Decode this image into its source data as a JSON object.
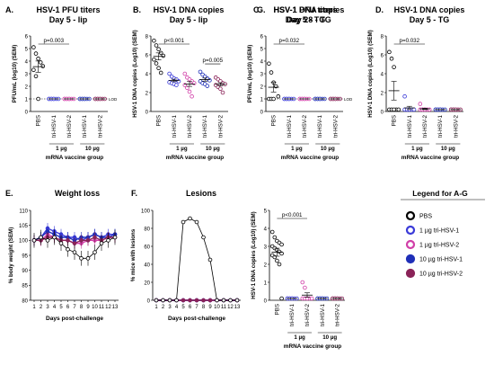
{
  "colors": {
    "pbs": "#000000",
    "low1": "#3a3ad8",
    "low2": "#d13fa8",
    "high1": "#1f2fb8",
    "high2": "#8a2358"
  },
  "legend": {
    "title": "Legend for A-G",
    "items": [
      {
        "label": "PBS",
        "color": "#000000"
      },
      {
        "label": "1 µg tri-HSV-1",
        "color": "#3a3ad8"
      },
      {
        "label": "1 µg tri-HSV-2",
        "color": "#d13fa8"
      },
      {
        "label": "10 µg tri-HSV-1",
        "color": "#1f2fb8"
      },
      {
        "label": "10 µg tri-HSV-2",
        "color": "#8a2358"
      }
    ]
  },
  "chart_data": [
    {
      "panel": "A.",
      "type": "scatter",
      "title": "HSV-1 PFU titers",
      "subtitle": "Day 5 - lip",
      "ylabel": "PFU/mL (log10) (SEM)",
      "xlabel": "mRNA vaccine group",
      "categories": [
        "PBS",
        "tri-HSV-1",
        "tri-HSV-2",
        "tri-HSV-1",
        "tri-HSV-2"
      ],
      "dose_labels": [
        "1 µg",
        "10 µg"
      ],
      "ylim": [
        0,
        6
      ],
      "yticks": [
        0,
        1,
        2,
        3,
        4,
        5,
        6
      ],
      "lod_label": "LOD",
      "stats": [
        {
          "text": "p=0.003",
          "from": 0,
          "to": 2
        }
      ],
      "groups": [
        [
          5.1,
          4.6,
          4.2,
          3.9,
          3.6,
          3.3,
          2.8,
          1.0
        ],
        [
          1,
          1,
          1,
          1,
          1,
          1,
          1,
          1
        ],
        [
          1,
          1,
          1,
          1,
          1,
          1,
          1,
          1
        ],
        [
          1,
          1,
          1,
          1,
          1,
          1,
          1,
          1
        ],
        [
          1,
          1,
          1,
          1,
          1,
          1,
          1,
          1
        ]
      ]
    },
    {
      "panel": "B.",
      "type": "scatter",
      "title": "HSV-1 DNA copies",
      "subtitle": "Day 5 - lip",
      "ylabel": "HSV-1 DNA copies (Log10) (SEM)",
      "xlabel": "mRNA vaccine group",
      "categories": [
        "PBS",
        "tri-HSV-1",
        "tri-HSV-2",
        "tri-HSV-1",
        "tri-HSV-2"
      ],
      "dose_labels": [
        "1 µg",
        "10 µg"
      ],
      "ylim": [
        0,
        8
      ],
      "yticks": [
        0,
        2,
        4,
        6,
        8
      ],
      "stats": [
        {
          "text": "p<0.001",
          "from": 0,
          "to": 2
        },
        {
          "text": "p=0.005",
          "from": 3,
          "to": 4
        }
      ],
      "groups": [
        [
          7.5,
          7.0,
          6.6,
          6.2,
          5.9,
          5.5,
          5.1,
          4.6,
          4.1
        ],
        [
          4.0,
          3.7,
          3.5,
          3.4,
          3.2,
          3.1,
          3.0,
          2.9,
          2.8
        ],
        [
          4.0,
          3.6,
          3.4,
          3.2,
          3.0,
          2.8,
          2.5,
          2.1,
          1.6
        ],
        [
          4.2,
          3.9,
          3.7,
          3.5,
          3.3,
          3.2,
          3.0,
          2.9,
          2.7
        ],
        [
          3.6,
          3.4,
          3.2,
          3.0,
          2.9,
          2.8,
          2.6,
          2.4,
          2.0
        ]
      ]
    },
    {
      "panel": "C.",
      "type": "scatter",
      "title": "HSV-1 PFU  titers",
      "subtitle": "Day 5 - TG",
      "ylabel": "PFU/mL (log10) (SEM)",
      "xlabel": "mRNA vaccine group",
      "categories": [
        "PBS",
        "tri-HSV-1",
        "tri-HSV-2",
        "tri-HSV-1",
        "tri-HSV-2"
      ],
      "dose_labels": [
        "1 µg",
        "10 µg"
      ],
      "ylim": [
        0,
        6
      ],
      "yticks": [
        0,
        1,
        2,
        3,
        4,
        5,
        6
      ],
      "lod_label": "LOD",
      "stats": [
        {
          "text": "p=0.032",
          "from": 0,
          "to": 2
        }
      ],
      "groups": [
        [
          3.8,
          3.1,
          2.3,
          2.0,
          1.2,
          1.0,
          1.0,
          1.0
        ],
        [
          1,
          1,
          1,
          1,
          1,
          1,
          1,
          1
        ],
        [
          1,
          1,
          1,
          1,
          1,
          1,
          1,
          1
        ],
        [
          1,
          1,
          1,
          1,
          1,
          1,
          1,
          1
        ],
        [
          1,
          1,
          1,
          1,
          1,
          1,
          1,
          1
        ]
      ]
    },
    {
      "panel": "D.",
      "type": "scatter",
      "title": "HSV-1 DNA copies",
      "subtitle": "Day 5 - TG",
      "ylabel": "HSV-1 DNA copies (Log10) (SEM)",
      "xlabel": "mRNA vaccine group",
      "categories": [
        "PBS",
        "tri-HSV-1",
        "tri-HSV-2",
        "tri-HSV-1",
        "tri-HSV-2"
      ],
      "dose_labels": [
        "1 µg",
        "10 µg"
      ],
      "ylim": [
        0,
        8
      ],
      "yticks": [
        0,
        2,
        4,
        6,
        8
      ],
      "stats": [
        {
          "text": "p=0.032",
          "from": 0,
          "to": 2
        }
      ],
      "groups": [
        [
          6.3,
          5.6,
          4.7,
          0.2,
          0.2,
          0.2,
          0.2,
          0.2
        ],
        [
          1.6,
          0.2,
          0.2,
          0.2,
          0.2,
          0.2,
          0.2,
          0.2
        ],
        [
          0.8,
          0.2,
          0.2,
          0.2,
          0.2,
          0.2,
          0.2,
          0.2
        ],
        [
          0.2,
          0.2,
          0.2,
          0.2,
          0.2,
          0.2,
          0.2,
          0.2
        ],
        [
          0.2,
          0.2,
          0.2,
          0.2,
          0.2,
          0.2,
          0.2,
          0.2
        ]
      ]
    },
    {
      "panel": "E.",
      "type": "line",
      "title": "Weight loss",
      "ylabel": "% body weight (SEM)",
      "xlabel": "Days post-challenge",
      "x": [
        1,
        2,
        3,
        4,
        5,
        6,
        7,
        8,
        9,
        10,
        11,
        12,
        13
      ],
      "ylim": [
        80,
        110
      ],
      "yticks": [
        80,
        85,
        90,
        95,
        100,
        105,
        110
      ],
      "series": [
        {
          "values": [
            100,
            101,
            100,
            101,
            99,
            97,
            96,
            94,
            94,
            96,
            99,
            100,
            101
          ]
        },
        {
          "values": [
            100,
            101,
            104,
            103,
            102,
            101,
            101,
            100,
            101,
            102,
            101,
            102,
            102
          ]
        },
        {
          "values": [
            100,
            100,
            102,
            101,
            100,
            100,
            99,
            99,
            100,
            100,
            100,
            101,
            101
          ]
        },
        {
          "values": [
            100,
            101,
            103,
            102,
            101,
            101,
            100,
            101,
            101,
            102,
            101,
            101,
            102
          ]
        },
        {
          "values": [
            100,
            100,
            101,
            101,
            100,
            100,
            99,
            100,
            100,
            101,
            100,
            101,
            101
          ]
        }
      ]
    },
    {
      "panel": "F.",
      "type": "line",
      "title": "Lesions",
      "ylabel": "% mice with lesions",
      "xlabel": "Days post-challenge",
      "x": [
        1,
        2,
        3,
        4,
        5,
        6,
        7,
        8,
        9,
        10,
        11,
        12,
        13
      ],
      "ylim": [
        0,
        100
      ],
      "yticks": [
        0,
        20,
        40,
        60,
        80,
        100
      ],
      "series": [
        {
          "values": [
            0,
            0,
            0,
            0,
            87,
            91,
            87,
            70,
            45,
            0,
            0,
            0,
            0
          ]
        },
        {
          "values": [
            0,
            0,
            0,
            0,
            0,
            0,
            0,
            0,
            0,
            0,
            0,
            0,
            0
          ]
        },
        {
          "values": [
            0,
            0,
            0,
            0,
            0,
            0,
            0,
            0,
            0,
            0,
            0,
            0,
            0
          ]
        },
        {
          "values": [
            0,
            0,
            0,
            0,
            0,
            0,
            0,
            0,
            0,
            0,
            0,
            0,
            0
          ]
        },
        {
          "values": [
            0,
            0,
            0,
            0,
            0,
            0,
            0,
            0,
            0,
            0,
            0,
            0,
            0
          ]
        }
      ]
    },
    {
      "panel": "G.",
      "type": "scatter",
      "title": "HSV-1 DNA copies",
      "subtitle": "Day 28 - TG",
      "ylabel": "HSV-1 DNA copies (Log10) (SEM)",
      "xlabel": "mRNA vaccine group",
      "categories": [
        "PBS",
        "tri-HSV-1",
        "tri-HSV-2",
        "tri-HSV-1",
        "tri-HSV-2"
      ],
      "dose_labels": [
        "1 µg",
        "10 µg"
      ],
      "ylim": [
        0,
        5
      ],
      "yticks": [
        0,
        1,
        2,
        3,
        4,
        5
      ],
      "stats": [
        {
          "text": "p<0.001",
          "from": 0,
          "to": 2
        }
      ],
      "groups": [
        [
          3.8,
          3.5,
          3.3,
          3.2,
          3.1,
          3.0,
          2.9,
          2.8,
          2.7,
          2.6,
          2.5,
          2.4,
          2.2,
          2.0,
          0.1
        ],
        [
          0.1,
          0.1,
          0.1,
          0.1,
          0.1,
          0.1,
          0.1,
          0.1
        ],
        [
          1.0,
          0.7,
          0.1,
          0.1,
          0.1,
          0.1,
          0.1,
          0.1
        ],
        [
          0.1,
          0.1,
          0.1,
          0.1,
          0.1,
          0.1,
          0.1,
          0.1
        ],
        [
          0.1,
          0.1,
          0.1,
          0.1,
          0.1,
          0.1,
          0.1,
          0.1
        ]
      ]
    }
  ]
}
